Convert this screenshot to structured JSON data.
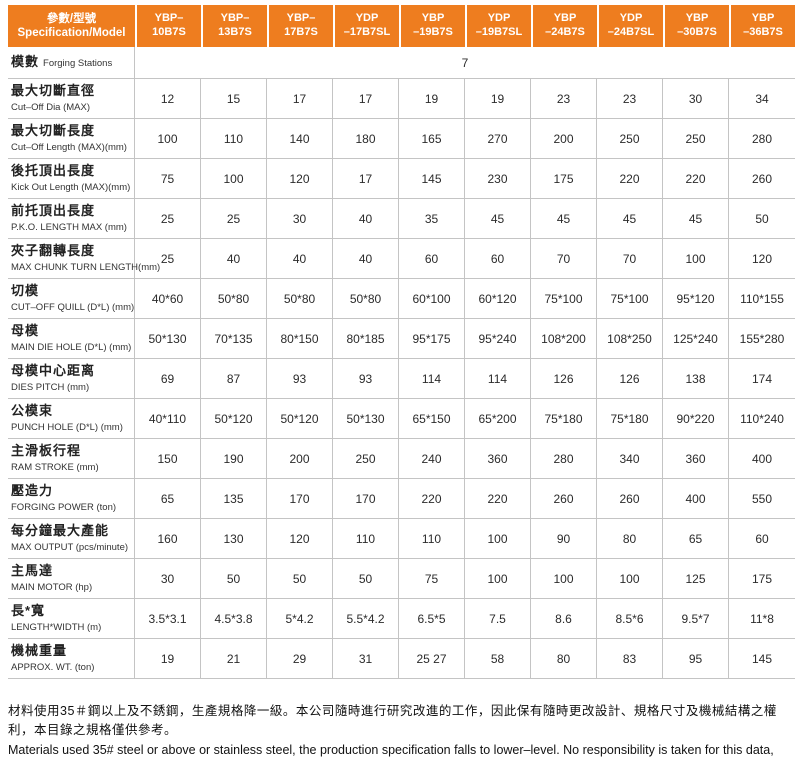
{
  "header": {
    "spec_label_zh": "參數/型號",
    "spec_label_en": "Specification/Model",
    "models": [
      {
        "lines": [
          "YBP–10B7S"
        ]
      },
      {
        "lines": [
          "YBP–13B7S"
        ]
      },
      {
        "lines": [
          "YBP–17B7S"
        ]
      },
      {
        "lines": [
          "YDP",
          "–17B7SL"
        ]
      },
      {
        "lines": [
          "YBP",
          "–19B7S"
        ]
      },
      {
        "lines": [
          "YDP",
          "–19B7SL"
        ]
      },
      {
        "lines": [
          "YBP",
          "–24B7S"
        ]
      },
      {
        "lines": [
          "YDP",
          "–24B7SL"
        ]
      },
      {
        "lines": [
          "YBP",
          "–30B7S"
        ]
      },
      {
        "lines": [
          "YBP",
          "–36B7S"
        ]
      }
    ]
  },
  "rows": [
    {
      "zh": "模數",
      "en": "Forging Stations",
      "merged": true,
      "values": [
        "7"
      ]
    },
    {
      "zh": "最大切斷直徑",
      "en": "Cut–Off Dia (MAX)",
      "values": [
        "12",
        "15",
        "17",
        "17",
        "19",
        "19",
        "23",
        "23",
        "30",
        "34"
      ]
    },
    {
      "zh": "最大切斷長度",
      "en": "Cut–Off Length (MAX)(mm)",
      "values": [
        "100",
        "110",
        "140",
        "180",
        "165",
        "270",
        "200",
        "250",
        "250",
        "280"
      ]
    },
    {
      "zh": "後托頂出長度",
      "en": "Kick Out Length (MAX)(mm)",
      "values": [
        "75",
        "100",
        "120",
        "17",
        "145",
        "230",
        "175",
        "220",
        "220",
        "260"
      ]
    },
    {
      "zh": "前托頂出長度",
      "en": "P.K.O. LENGTH MAX (mm)",
      "values": [
        "25",
        "25",
        "30",
        "40",
        "35",
        "45",
        "45",
        "45",
        "45",
        "50"
      ]
    },
    {
      "zh": "夾子翻轉長度",
      "en": "MAX CHUNK TURN LENGTH(mm)",
      "values": [
        "25",
        "40",
        "40",
        "40",
        "60",
        "60",
        "70",
        "70",
        "100",
        "120"
      ]
    },
    {
      "zh": "切模",
      "en": "CUT–OFF QUILL (D*L) (mm)",
      "values": [
        "40*60",
        "50*80",
        "50*80",
        "50*80",
        "60*100",
        "60*120",
        "75*100",
        "75*100",
        "95*120",
        "110*155"
      ]
    },
    {
      "zh": "母模",
      "en": "MAIN DIE HOLE (D*L) (mm)",
      "values": [
        "50*130",
        "70*135",
        "80*150",
        "80*185",
        "95*175",
        "95*240",
        "108*200",
        "108*250",
        "125*240",
        "155*280"
      ]
    },
    {
      "zh": "母模中心距离",
      "en": "DIES PITCH (mm)",
      "values": [
        "69",
        "87",
        "93",
        "93",
        "114",
        "114",
        "126",
        "126",
        "138",
        "174"
      ]
    },
    {
      "zh": "公模束",
      "en": "PUNCH HOLE (D*L) (mm)",
      "values": [
        "40*110",
        "50*120",
        "50*120",
        "50*130",
        "65*150",
        "65*200",
        "75*180",
        "75*180",
        "90*220",
        "110*240"
      ]
    },
    {
      "zh": "主滑板行程",
      "en": "RAM STROKE (mm)",
      "values": [
        "150",
        "190",
        "200",
        "250",
        "240",
        "360",
        "280",
        "340",
        "360",
        "400"
      ]
    },
    {
      "zh": "壓造力",
      "en": "FORGING POWER (ton)",
      "values": [
        "65",
        "135",
        "170",
        "170",
        "220",
        "220",
        "260",
        "260",
        "400",
        "550"
      ]
    },
    {
      "zh": "每分鐘最大產能",
      "en": "MAX OUTPUT (pcs/minute)",
      "values": [
        "160",
        "130",
        "120",
        "110",
        "110",
        "100",
        "90",
        "80",
        "65",
        "60"
      ]
    },
    {
      "zh": "主馬達",
      "en": "MAIN MOTOR (hp)",
      "values": [
        "30",
        "50",
        "50",
        "50",
        "75",
        "100",
        "100",
        "100",
        "125",
        "175"
      ]
    },
    {
      "zh": "長*寬",
      "en": "LENGTH*WIDTH (m)",
      "values": [
        "3.5*3.1",
        "4.5*3.8",
        "5*4.2",
        "5.5*4.2",
        "6.5*5",
        "7.5",
        "8.6",
        "8.5*6",
        "9.5*7",
        "11*8"
      ]
    },
    {
      "zh": "機械重量",
      "en": "APPROX. WT. (ton)",
      "values": [
        "19",
        "21",
        "29",
        "31",
        "25  27",
        "58",
        "80",
        "83",
        "95",
        "145"
      ]
    }
  ],
  "footer": {
    "zh": "材料使用35＃鋼以上及不銹鋼，生產規格降一級。本公司隨時進行研究改進的工作，因此保有隨時更改設計、規格尺寸及機械結構之權利，本目錄之規格僅供參考。",
    "en": "Materials used 35# steel or above or stainless steel, the production specification falls to lower–level. No responsibility is taken for this data, which may be altered as improvements in manufacture dictate."
  },
  "colors": {
    "header_orange": "#ee7d1f",
    "grid_line": "#c4c4c4",
    "text": "#2b2b2b"
  }
}
